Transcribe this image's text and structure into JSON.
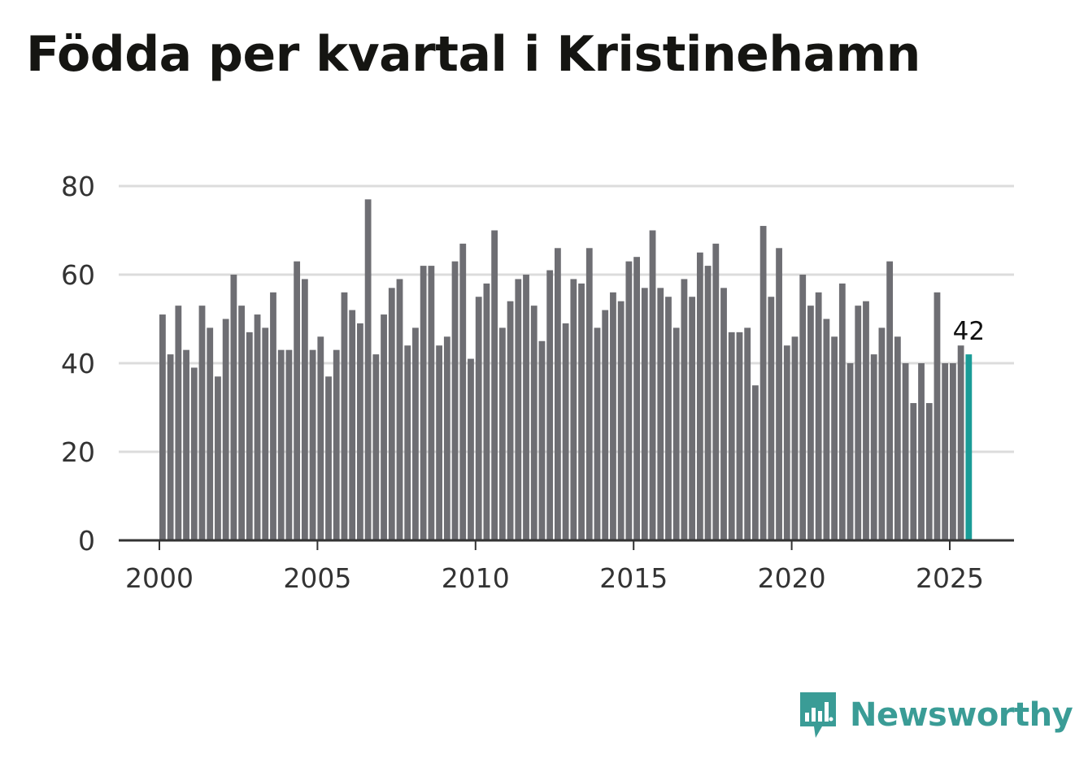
{
  "chart_data": {
    "type": "bar",
    "title": "Födda per kvartal i Kristinehamn",
    "xlabel": "",
    "ylabel": "",
    "ylim": [
      0,
      80
    ],
    "yticks": [
      0,
      20,
      40,
      60,
      80
    ],
    "xticks": [
      2000,
      2005,
      2010,
      2015,
      2020,
      2025
    ],
    "start_year": 2000,
    "grid": true,
    "highlight_label": "42",
    "colors": {
      "bar": "#6e6e73",
      "highlight": "#1a9c97",
      "grid": "#dcdcdc",
      "axis": "#333333"
    },
    "categories": [
      "2000K1",
      "2000K2",
      "2000K3",
      "2000K4",
      "2001K1",
      "2001K2",
      "2001K3",
      "2001K4",
      "2002K1",
      "2002K2",
      "2002K3",
      "2002K4",
      "2003K1",
      "2003K2",
      "2003K3",
      "2003K4",
      "2004K1",
      "2004K2",
      "2004K3",
      "2004K4",
      "2005K1",
      "2005K2",
      "2005K3",
      "2005K4",
      "2006K1",
      "2006K2",
      "2006K3",
      "2006K4",
      "2007K1",
      "2007K2",
      "2007K3",
      "2007K4",
      "2008K1",
      "2008K2",
      "2008K3",
      "2008K4",
      "2009K1",
      "2009K2",
      "2009K3",
      "2009K4",
      "2010K1",
      "2010K2",
      "2010K3",
      "2010K4",
      "2011K1",
      "2011K2",
      "2011K3",
      "2011K4",
      "2012K1",
      "2012K2",
      "2012K3",
      "2012K4",
      "2013K1",
      "2013K2",
      "2013K3",
      "2013K4",
      "2014K1",
      "2014K2",
      "2014K3",
      "2014K4",
      "2015K1",
      "2015K2",
      "2015K3",
      "2015K4",
      "2016K1",
      "2016K2",
      "2016K3",
      "2016K4",
      "2017K1",
      "2017K2",
      "2017K3",
      "2017K4",
      "2018K1",
      "2018K2",
      "2018K3",
      "2018K4",
      "2019K1",
      "2019K2",
      "2019K3",
      "2019K4",
      "2020K1",
      "2020K2",
      "2020K3",
      "2020K4",
      "2021K1",
      "2021K2",
      "2021K3",
      "2021K4",
      "2022K1",
      "2022K2",
      "2022K3",
      "2022K4",
      "2023K1",
      "2023K2",
      "2023K3",
      "2023K4",
      "2024K1",
      "2024K2",
      "2024K3",
      "2024K4",
      "2025K1",
      "2025K2",
      "2025K3"
    ],
    "values": [
      51,
      42,
      53,
      43,
      39,
      53,
      48,
      37,
      50,
      60,
      53,
      47,
      51,
      48,
      56,
      43,
      43,
      63,
      59,
      43,
      46,
      37,
      43,
      56,
      52,
      49,
      77,
      42,
      51,
      57,
      59,
      44,
      48,
      62,
      62,
      44,
      46,
      63,
      67,
      41,
      55,
      58,
      70,
      48,
      54,
      59,
      60,
      53,
      45,
      61,
      66,
      49,
      59,
      58,
      66,
      48,
      52,
      56,
      54,
      63,
      64,
      57,
      70,
      57,
      55,
      48,
      59,
      55,
      65,
      62,
      67,
      57,
      47,
      47,
      48,
      35,
      71,
      55,
      66,
      44,
      46,
      60,
      53,
      56,
      50,
      46,
      58,
      40,
      53,
      54,
      42,
      48,
      63,
      46,
      40,
      31,
      40,
      31,
      56,
      40,
      40,
      44,
      42
    ]
  },
  "brand": {
    "name": "Newsworthy",
    "icon": "newsworthy-logo-icon",
    "color": "#3a9c96"
  }
}
